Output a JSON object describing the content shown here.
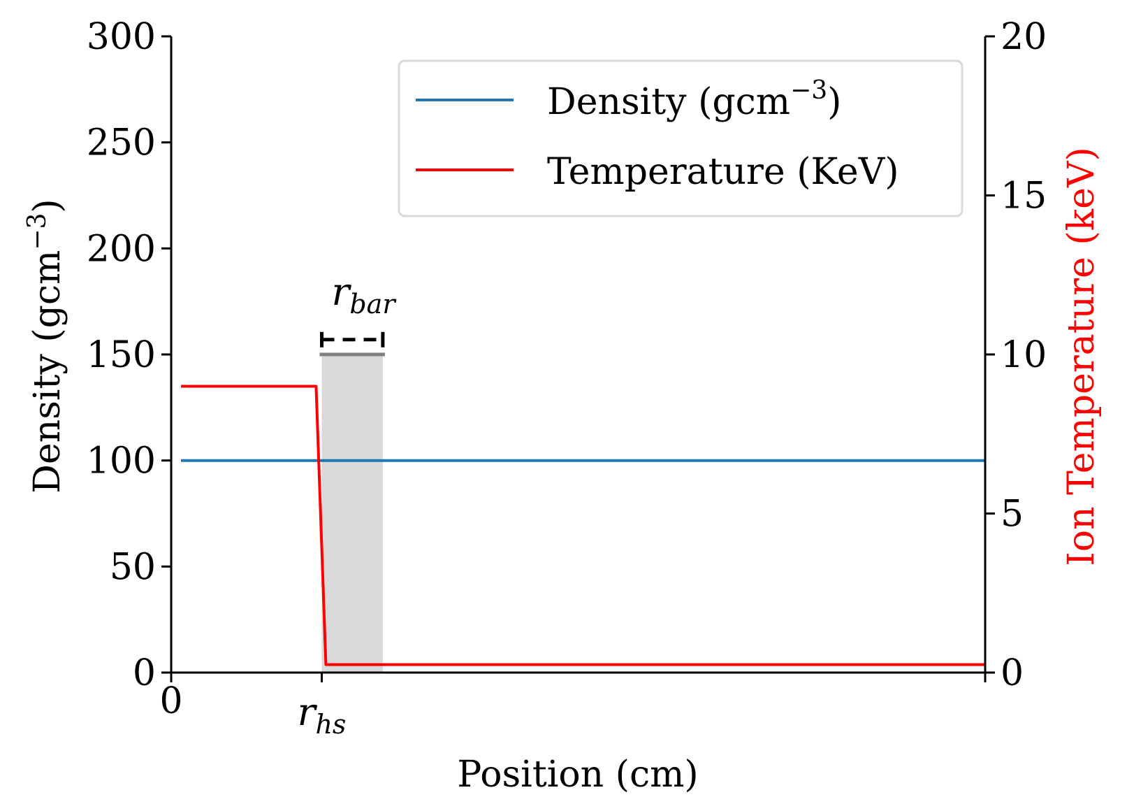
{
  "chart_data": {
    "type": "line",
    "xlabel": "Position (cm)",
    "ylabel_left": "Density (gcm",
    "ylabel_left_sup": "−3",
    "ylabel_left_close": ")",
    "ylabel_right": "Ion Temperature (keV)",
    "x_ticks": [
      {
        "label": "0",
        "x": 0
      },
      {
        "label": "r",
        "sub": "hs",
        "x": 0.185
      }
    ],
    "xlim": [
      0,
      1
    ],
    "ylim_left": [
      0,
      300
    ],
    "ylim_right": [
      0,
      20
    ],
    "yticks_left": [
      "0",
      "50",
      "100",
      "150",
      "200",
      "250",
      "300"
    ],
    "yticks_right": [
      "0",
      "5",
      "10",
      "15",
      "20"
    ],
    "series": [
      {
        "name": "Density (gcm",
        "name_sup": "−3",
        "name_close": ")",
        "axis": "left",
        "color": "#1f77b4",
        "x": [
          0.012,
          1.0
        ],
        "y": [
          100,
          100
        ]
      },
      {
        "name": "Temperature (KeV)",
        "axis": "right",
        "color": "#ff0000",
        "x": [
          0.012,
          0.178,
          0.19,
          1.0
        ],
        "y": [
          9.0,
          9.0,
          0.25,
          0.25
        ]
      }
    ],
    "shaded_region": {
      "x": [
        0.185,
        0.26
      ],
      "y_top": 150,
      "color": "#d9d9d9",
      "line_color": "#808080"
    },
    "annotation": {
      "label": "r",
      "sub": "bar",
      "x0": 0.185,
      "x1": 0.26,
      "y": 157
    },
    "legend_position": "upper-right",
    "grid": false
  }
}
